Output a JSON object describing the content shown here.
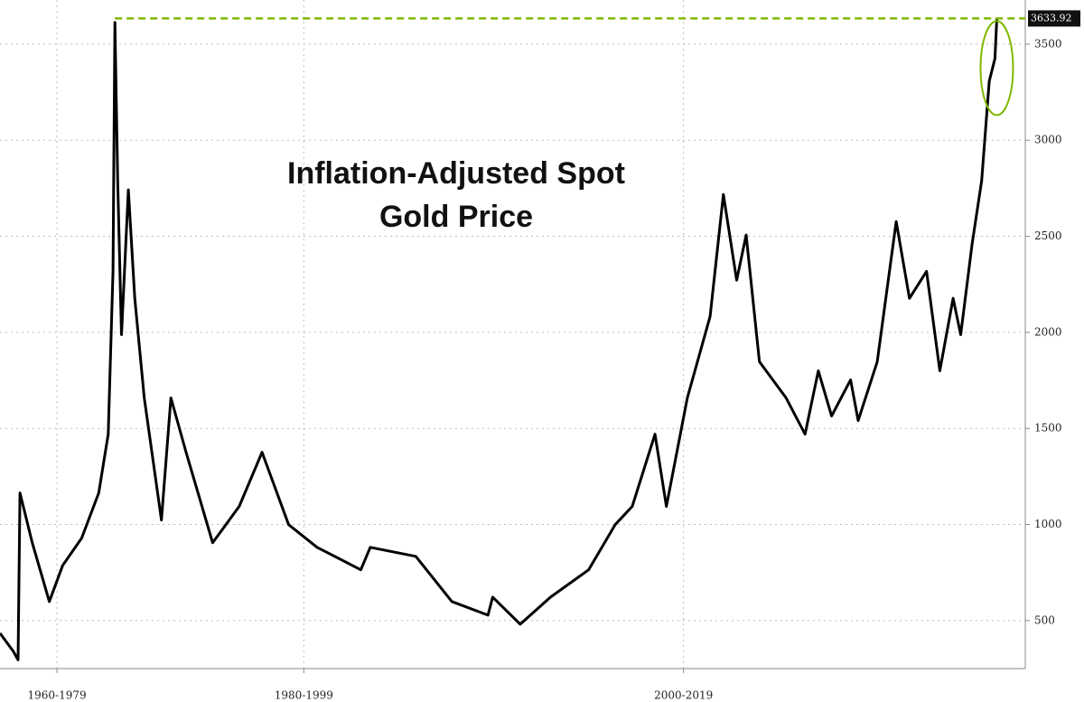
{
  "chart_data": {
    "type": "line",
    "title": "Inflation-Adjusted Spot Gold Price",
    "x": [
      1974.0,
      1974.7,
      1974.95,
      1975.05,
      1975.7,
      1976.6,
      1977.3,
      1978.3,
      1979.2,
      1979.7,
      1979.95,
      1980.05,
      1980.2,
      1980.4,
      1980.76,
      1981.1,
      1981.6,
      1982.5,
      1983.0,
      1983.8,
      1985.2,
      1986.6,
      1987.8,
      1989.2,
      1990.7,
      1993.0,
      1993.5,
      1995.9,
      1997.8,
      1999.7,
      1999.95,
      2001.4,
      2003.0,
      2005.0,
      2006.4,
      2007.3,
      2008.5,
      2009.1,
      2010.2,
      2011.4,
      2012.1,
      2012.8,
      2013.3,
      2014.0,
      2015.4,
      2016.4,
      2017.1,
      2017.8,
      2018.8,
      2019.2,
      2020.2,
      2021.2,
      2021.9,
      2022.8,
      2023.5,
      2024.2,
      2024.6,
      2025.2,
      2025.7,
      2026.1,
      2026.4,
      2026.5
    ],
    "values": [
      434,
      340,
      295,
      1164,
      905,
      599,
      787,
      929,
      1164,
      1470,
      2318,
      3613,
      2789,
      1988,
      2742,
      2177,
      1659,
      1023,
      1659,
      1376,
      905,
      1094,
      1376,
      999,
      881,
      764,
      881,
      834,
      599,
      528,
      622,
      481,
      622,
      764,
      999,
      1094,
      1470,
      1094,
      1659,
      2083,
      2718,
      2271,
      2507,
      1847,
      1659,
      1470,
      1800,
      1565,
      1753,
      1541,
      1847,
      2577,
      2177,
      2318,
      1800,
      2177,
      1988,
      2459,
      2789,
      3307,
      3425,
      3633.92
    ],
    "color": "#000000",
    "xlim": [
      1974,
      2028
    ],
    "ylim": [
      250,
      3730
    ],
    "xticks": [
      {
        "value": 1977,
        "label": "1960-1979"
      },
      {
        "value": 1990,
        "label": "1980-1999"
      },
      {
        "value": 2010,
        "label": "2000-2019"
      }
    ],
    "yticks": [
      500,
      1000,
      1500,
      2000,
      2500,
      3000,
      3500
    ],
    "grid": true,
    "max_line": {
      "value": 3633.92,
      "color": "#7fb800"
    }
  }
}
